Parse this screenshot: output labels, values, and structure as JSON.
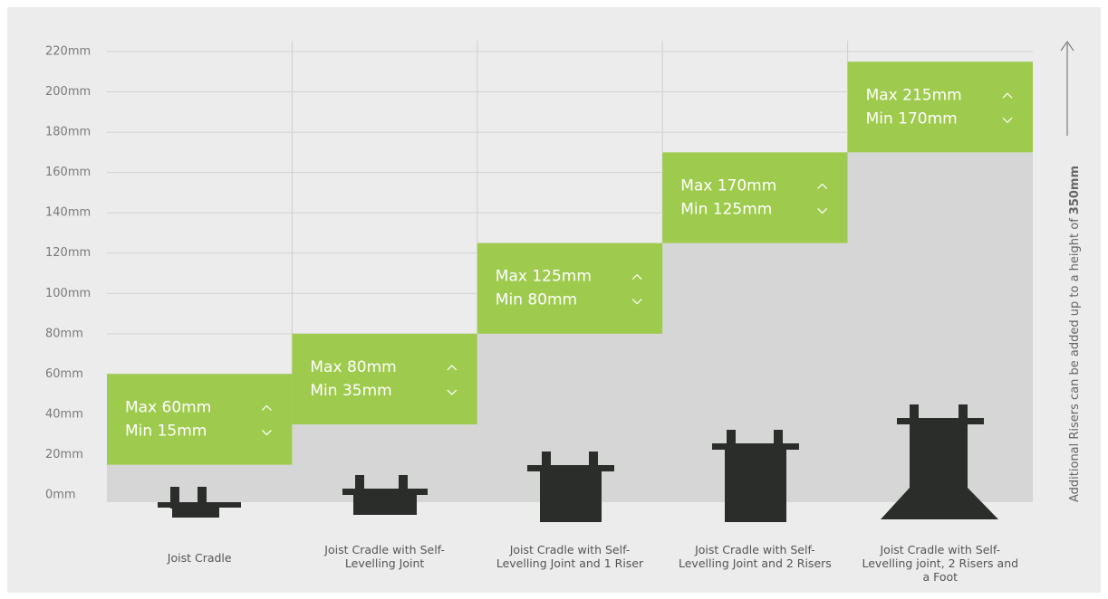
{
  "chart_data": {
    "type": "range-bar",
    "categories": [
      "Joist Cradle",
      "Joist Cradle with Self-Levelling Joint",
      "Joist Cradle with Self-Levelling Joint and 1 Riser",
      "Joist Cradle with Self-Levelling Joint and 2 Risers",
      "Joist Cradle with Self-Levelling joint, 2 Risers and a Foot"
    ],
    "series": [
      {
        "name": "Max",
        "color": "#9ecb4e",
        "values": [
          60,
          80,
          125,
          170,
          215
        ],
        "value_labels": [
          "Max 60mm",
          "Max 80mm",
          "Max 125mm",
          "Max 170mm",
          "Max 215mm"
        ]
      },
      {
        "name": "Min",
        "color": "#d6d6d6",
        "values": [
          15,
          35,
          80,
          125,
          170
        ],
        "value_labels": [
          "Min 15mm",
          "Min 35mm",
          "Min 80mm",
          "Min 125mm",
          "Min 170mm"
        ]
      }
    ],
    "ylim": [
      0,
      220
    ],
    "yticks": [
      {
        "value": 0,
        "label": "0mm"
      },
      {
        "value": 20,
        "label": "20mm"
      },
      {
        "value": 40,
        "label": "40mm"
      },
      {
        "value": 60,
        "label": "60mm"
      },
      {
        "value": 80,
        "label": "80mm"
      },
      {
        "value": 100,
        "label": "100mm"
      },
      {
        "value": 120,
        "label": "120mm"
      },
      {
        "value": 140,
        "label": "140mm"
      },
      {
        "value": 160,
        "label": "160mm"
      },
      {
        "value": 180,
        "label": "180mm"
      },
      {
        "value": 200,
        "label": "200mm"
      },
      {
        "value": 220,
        "label": "220mm"
      }
    ],
    "grid": true,
    "annotation": {
      "text": "Additional Risers can be added up to a height of",
      "emphasis": "350mm"
    }
  }
}
